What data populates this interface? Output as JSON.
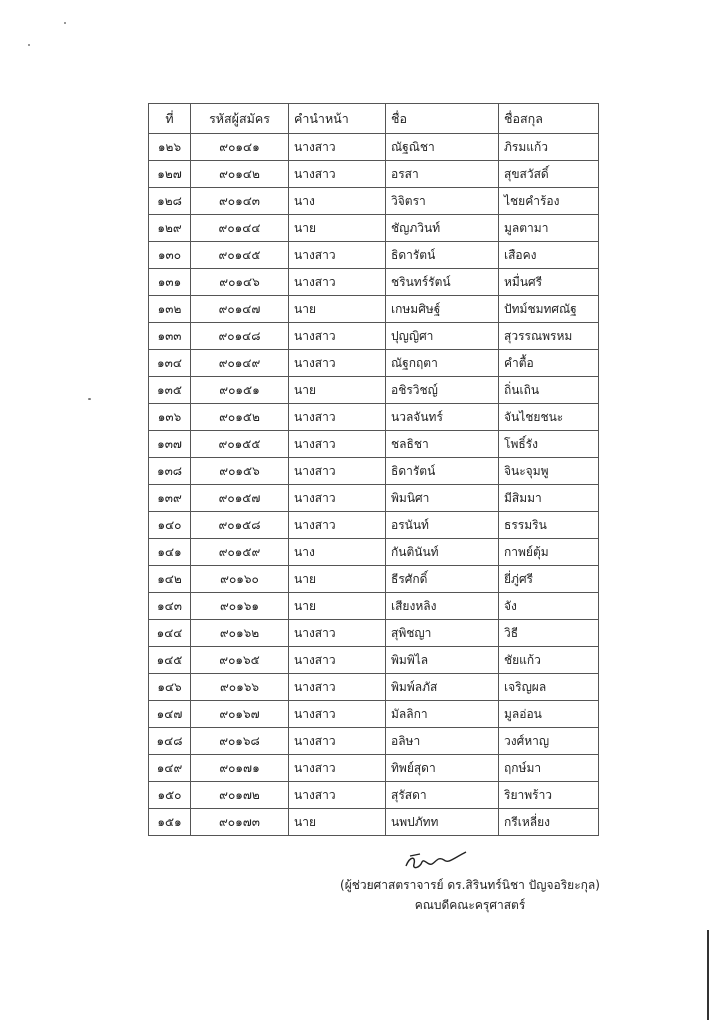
{
  "table": {
    "headers": [
      "ที่",
      "รหัสผู้สมัคร",
      "คำนำหน้า",
      "ชื่อ",
      "ชื่อสกุล"
    ],
    "rows": [
      [
        "๑๒๖",
        "๙๐๑๔๑",
        "นางสาว",
        "ณัฐณิชา",
        "ภิรมแก้ว"
      ],
      [
        "๑๒๗",
        "๙๐๑๔๒",
        "นางสาว",
        "อรสา",
        "สุขสวัสดิ์"
      ],
      [
        "๑๒๘",
        "๙๐๑๔๓",
        "นาง",
        "วิจิตรา",
        "ไชยคำร้อง"
      ],
      [
        "๑๒๙",
        "๙๐๑๔๔",
        "นาย",
        "ชัญภวินท์",
        "มูลตามา"
      ],
      [
        "๑๓๐",
        "๙๐๑๔๕",
        "นางสาว",
        "ธิดารัตน์",
        "เสือคง"
      ],
      [
        "๑๓๑",
        "๙๐๑๔๖",
        "นางสาว",
        "ชรินทร์รัตน์",
        "หมื่นศรี"
      ],
      [
        "๑๓๒",
        "๙๐๑๔๗",
        "นาย",
        "เกษมศิษฐ์",
        "ปัทม์ชมทศณัฐ"
      ],
      [
        "๑๓๓",
        "๙๐๑๔๘",
        "นางสาว",
        "ปุญญิศา",
        "สุวรรณพรหม"
      ],
      [
        "๑๓๔",
        "๙๐๑๔๙",
        "นางสาว",
        "ณัฐกฤตา",
        "คำตื้อ"
      ],
      [
        "๑๓๕",
        "๙๐๑๕๑",
        "นาย",
        "อชิรวิชญ์",
        "ถิ่นเถิน"
      ],
      [
        "๑๓๖",
        "๙๐๑๕๒",
        "นางสาว",
        "นวลจันทร์",
        "จันไชยชนะ"
      ],
      [
        "๑๓๗",
        "๙๐๑๕๕",
        "นางสาว",
        "ชลธิชา",
        "โพธิ์รัง"
      ],
      [
        "๑๓๘",
        "๙๐๑๕๖",
        "นางสาว",
        "ธิดารัตน์",
        "จินะจุมพู"
      ],
      [
        "๑๓๙",
        "๙๐๑๕๗",
        "นางสาว",
        "พิมนิศา",
        "มีสิมมา"
      ],
      [
        "๑๔๐",
        "๙๐๑๕๘",
        "นางสาว",
        "อรนันท์",
        "ธรรมริน"
      ],
      [
        "๑๔๑",
        "๙๐๑๕๙",
        "นาง",
        "กันตินันท์",
        "กาพย์ตุ้ม"
      ],
      [
        "๑๔๒",
        "๙๐๑๖๐",
        "นาย",
        "ธีรศักดิ์",
        "ยี่ภู่ศรี"
      ],
      [
        "๑๔๓",
        "๙๐๑๖๑",
        "นาย",
        "เสียงหลิง",
        "จัง"
      ],
      [
        "๑๔๔",
        "๙๐๑๖๒",
        "นางสาว",
        "สุพิชญา",
        "วิธี"
      ],
      [
        "๑๔๕",
        "๙๐๑๖๕",
        "นางสาว",
        "พิมพิไล",
        "ชัยแก้ว"
      ],
      [
        "๑๔๖",
        "๙๐๑๖๖",
        "นางสาว",
        "พิมพ์ลภัส",
        "เจริญผล"
      ],
      [
        "๑๔๗",
        "๙๐๑๖๗",
        "นางสาว",
        "มัลลิกา",
        "มูลอ่อน"
      ],
      [
        "๑๔๘",
        "๙๐๑๖๘",
        "นางสาว",
        "อลิษา",
        "วงศ์หาญ"
      ],
      [
        "๑๔๙",
        "๙๐๑๗๑",
        "นางสาว",
        "ทิพย์สุดา",
        "ฤกษ์มา"
      ],
      [
        "๑๕๐",
        "๙๐๑๗๒",
        "นางสาว",
        "สุรัสดา",
        "ริยาพร้าว"
      ],
      [
        "๑๕๑",
        "๙๐๑๗๓",
        "นาย",
        "นพปภัทท",
        "กรีเหลี่ยง"
      ]
    ]
  },
  "signature": {
    "name": "(ผู้ช่วยศาสตราจารย์ ดร.สิรินทร์นิชา ปัญจอริยะกุล)",
    "position": "คณบดีคณะครุศาสตร์"
  }
}
